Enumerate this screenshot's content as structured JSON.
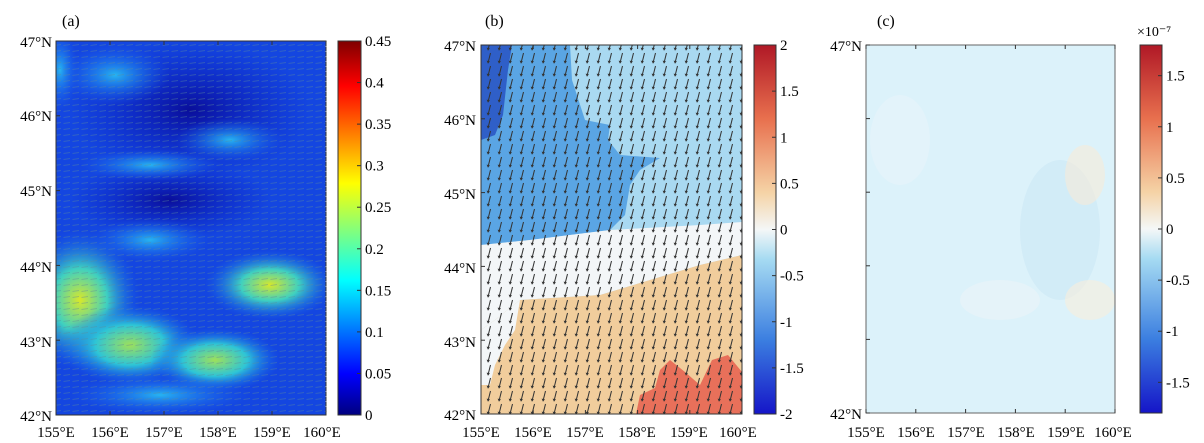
{
  "figure": {
    "panels": [
      {
        "label": "(a)",
        "y_ticks": [
          "47°N",
          "46°N",
          "45°N",
          "44°N",
          "43°N",
          "42°N"
        ],
        "x_ticks": [
          "155°E",
          "156°E",
          "157°E",
          "158°E",
          "159°E",
          "160°E"
        ],
        "colorbar": {
          "ticks": [
            "0.45",
            "0.4",
            "0.35",
            "0.3",
            "0.25",
            "0.2",
            "0.15",
            "0.1",
            "0.05",
            "0"
          ],
          "min": 0,
          "max": 0.45,
          "scale_label": ""
        }
      },
      {
        "label": "(b)",
        "y_ticks": [
          "47°N",
          "46°N",
          "45°N",
          "44°N",
          "43°N",
          "42°N"
        ],
        "x_ticks": [
          "155°E",
          "156°E",
          "157°E",
          "158°E",
          "159°E",
          "160°E"
        ],
        "colorbar": {
          "ticks": [
            "2",
            "1.5",
            "1",
            "0.5",
            "0",
            "-0.5",
            "-1",
            "-1.5",
            "-2"
          ],
          "min": -2,
          "max": 2,
          "scale_label": ""
        }
      },
      {
        "label": "(c)",
        "y_ticks": [
          "47°N",
          "42°N"
        ],
        "x_ticks": [
          "155°E",
          "156°E",
          "157°E",
          "158°E",
          "159°E",
          "160°E"
        ],
        "colorbar": {
          "ticks": [
            "1.5",
            "1",
            "0.5",
            "0",
            "-0.5",
            "-1",
            "-1.5"
          ],
          "min": -1.8,
          "max": 1.8,
          "scale_label": "×10⁻⁷"
        }
      }
    ]
  },
  "colors": {
    "jet_dark_blue": "#00007f",
    "jet_blue": "#0000ff",
    "jet_cyan": "#00ffff",
    "jet_yellow": "#ffff00",
    "jet_red": "#ff0000",
    "jet_dark_red": "#7f0000",
    "b_deep_blue": "#2f5fc8",
    "b_mid_blue": "#5aa5e4",
    "b_light_blue": "#a9d9f1",
    "b_white": "#f3f6f8",
    "b_tan": "#f1cd9c",
    "b_red": "#e8705a",
    "c_pale": "#dcf2fa"
  }
}
